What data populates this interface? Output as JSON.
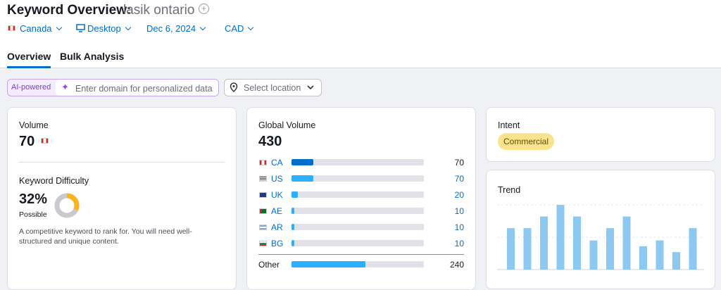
{
  "header": {
    "title": "Keyword Overview:",
    "keyword": "lasik ontario"
  },
  "filters": {
    "country": "Canada",
    "device": "Desktop",
    "date": "Dec 6, 2024",
    "currency": "CAD"
  },
  "tabs": [
    "Overview",
    "Bulk Analysis"
  ],
  "toolbar": {
    "badge": "AI-powered",
    "domain_placeholder": "Enter domain for personalized data",
    "location": "Select location"
  },
  "volume": {
    "label": "Volume",
    "value": 70
  },
  "difficulty": {
    "label": "Keyword Difficulty",
    "value": 32,
    "value_label": "32%",
    "level": "Possible",
    "description": "A competitive keyword to rank for. You will need well-structured and unique content."
  },
  "global_volume": {
    "label": "Global Volume",
    "value": 430,
    "countries": [
      {
        "code": "CA",
        "value": 70
      },
      {
        "code": "US",
        "value": 70
      },
      {
        "code": "UK",
        "value": 20
      },
      {
        "code": "AE",
        "value": 10
      },
      {
        "code": "AR",
        "value": 10
      },
      {
        "code": "BG",
        "value": 10
      }
    ],
    "other": {
      "label": "Other",
      "value": 240
    }
  },
  "intent": {
    "label": "Intent",
    "value": "Commercial"
  },
  "trend": {
    "label": "Trend",
    "values": [
      64,
      64,
      82,
      100,
      82,
      45,
      64,
      82,
      36,
      45,
      27,
      64
    ]
  }
}
